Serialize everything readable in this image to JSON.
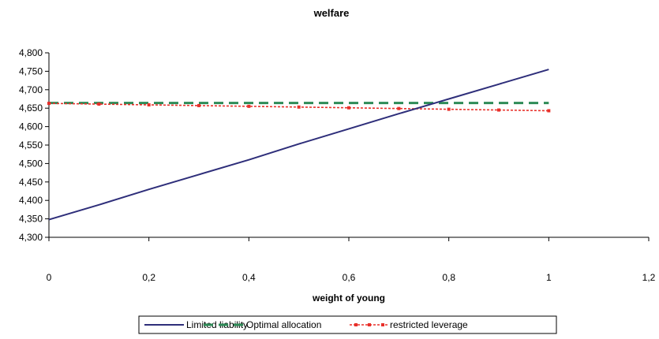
{
  "chart_data": {
    "type": "line",
    "title": "welfare",
    "xlabel": "weight of young",
    "ylabel": "",
    "xlim": [
      0,
      1.2
    ],
    "ylim": [
      4300,
      4800
    ],
    "x_ticks": [
      "0",
      "0,2",
      "0,4",
      "0,6",
      "0,8",
      "1",
      "1,2"
    ],
    "y_ticks": [
      "4,300",
      "4,350",
      "4,400",
      "4,450",
      "4,500",
      "4,550",
      "4,600",
      "4,650",
      "4,700",
      "4,750",
      "4,800"
    ],
    "grid": false,
    "legend_position": "bottom",
    "series": [
      {
        "name": "Limited liability",
        "color": "#2e2e7a",
        "style": "solid",
        "x": [
          0,
          0.1,
          0.2,
          0.3,
          0.4,
          0.5,
          0.6,
          0.7,
          0.8,
          0.9,
          1
        ],
        "values": [
          4348,
          4388,
          4430,
          4470,
          4510,
          4553,
          4594,
          4635,
          4675,
          4715,
          4755
        ]
      },
      {
        "name": "Optimal allocation",
        "color": "#2e8b57",
        "style": "dashed",
        "x": [
          0,
          0.1,
          0.2,
          0.3,
          0.4,
          0.5,
          0.6,
          0.7,
          0.8,
          0.9,
          1
        ],
        "values": [
          4664,
          4664,
          4664,
          4664,
          4664,
          4664,
          4664,
          4664,
          4664,
          4664,
          4664
        ]
      },
      {
        "name": "restricted leverage",
        "color": "#e8302a",
        "style": "dotted-markers",
        "x": [
          0,
          0.1,
          0.2,
          0.3,
          0.4,
          0.5,
          0.6,
          0.7,
          0.8,
          0.9,
          1
        ],
        "values": [
          4663,
          4661,
          4659,
          4657,
          4655,
          4653,
          4651,
          4649,
          4647,
          4645,
          4643
        ]
      }
    ]
  }
}
